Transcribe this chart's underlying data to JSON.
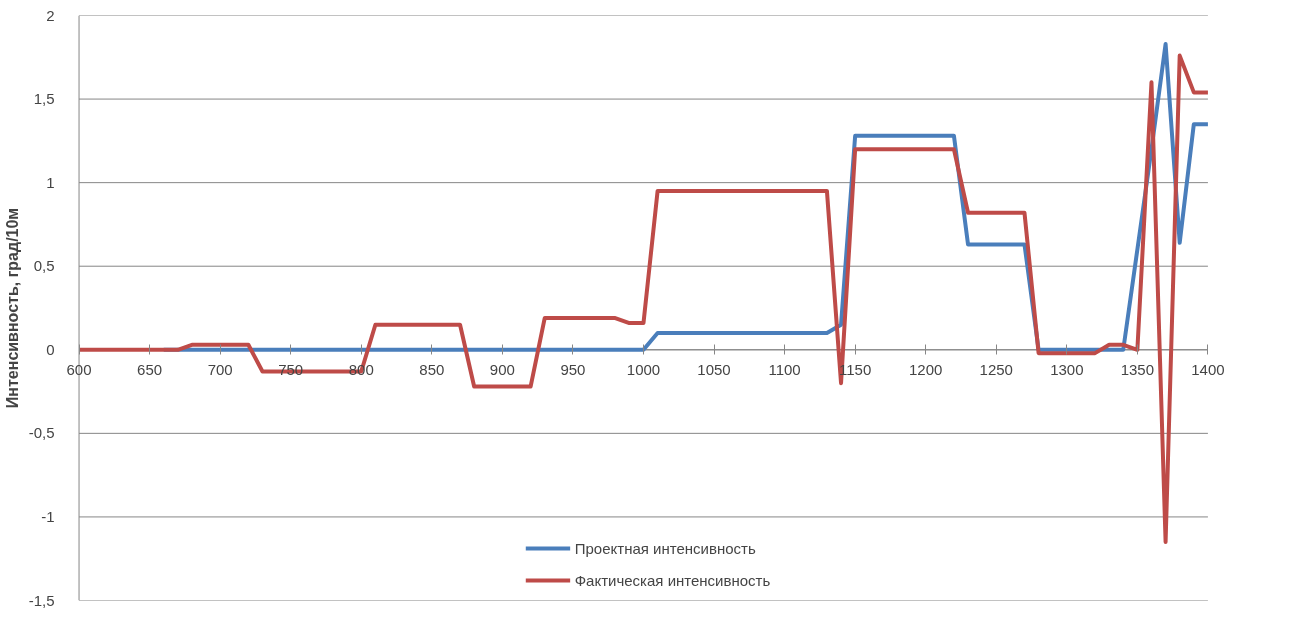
{
  "chart_data": {
    "type": "line",
    "ylabel": "Интенсивность, град/10м",
    "x": [
      600,
      610,
      620,
      630,
      640,
      650,
      660,
      670,
      680,
      690,
      700,
      710,
      720,
      730,
      740,
      750,
      760,
      770,
      780,
      790,
      800,
      810,
      820,
      830,
      840,
      850,
      860,
      870,
      880,
      890,
      900,
      910,
      920,
      930,
      940,
      950,
      960,
      970,
      980,
      990,
      1000,
      1010,
      1020,
      1030,
      1040,
      1050,
      1060,
      1070,
      1080,
      1090,
      1100,
      1110,
      1120,
      1130,
      1140,
      1150,
      1160,
      1170,
      1180,
      1190,
      1200,
      1210,
      1220,
      1230,
      1240,
      1250,
      1260,
      1270,
      1280,
      1290,
      1300,
      1310,
      1320,
      1330,
      1340,
      1350,
      1360,
      1370,
      1380,
      1390,
      1400
    ],
    "series": [
      {
        "name": "Проектная интенсивность",
        "color": "#4a7ebb",
        "values": [
          null,
          null,
          null,
          null,
          null,
          null,
          0,
          0,
          0,
          0,
          0,
          0,
          0,
          0,
          0,
          0,
          0,
          0,
          0,
          0,
          0,
          0,
          0,
          0,
          0,
          0,
          0,
          0,
          0,
          0,
          0,
          0,
          0,
          0,
          0,
          0,
          0,
          0,
          0,
          0,
          0,
          0.1,
          0.1,
          0.1,
          0.1,
          0.1,
          0.1,
          0.1,
          0.1,
          0.1,
          0.1,
          0.1,
          0.1,
          0.1,
          0.15,
          1.28,
          1.28,
          1.28,
          1.28,
          1.28,
          1.28,
          1.28,
          1.28,
          0.63,
          0.63,
          0.63,
          0.63,
          0.63,
          0,
          0,
          0,
          0,
          0,
          0,
          0,
          0.6,
          1.2,
          1.83,
          0.64,
          1.35,
          1.35
        ]
      },
      {
        "name": "Фактическая интенсивность",
        "color": "#be4b48",
        "values": [
          0,
          0,
          0,
          0,
          0,
          0,
          0,
          0,
          0.03,
          0.03,
          0.03,
          0.03,
          0.03,
          -0.13,
          -0.13,
          -0.13,
          -0.13,
          -0.13,
          -0.13,
          -0.13,
          -0.13,
          0.15,
          0.15,
          0.15,
          0.15,
          0.15,
          0.15,
          0.15,
          -0.22,
          -0.22,
          -0.22,
          -0.22,
          -0.22,
          0.19,
          0.19,
          0.19,
          0.19,
          0.19,
          0.19,
          0.16,
          0.16,
          0.95,
          0.95,
          0.95,
          0.95,
          0.95,
          0.95,
          0.95,
          0.95,
          0.95,
          0.95,
          0.95,
          0.95,
          0.95,
          -0.2,
          1.2,
          1.2,
          1.2,
          1.2,
          1.2,
          1.2,
          1.2,
          1.2,
          0.82,
          0.82,
          0.82,
          0.82,
          0.82,
          -0.02,
          -0.02,
          -0.02,
          -0.02,
          -0.02,
          0.03,
          0.03,
          0,
          1.6,
          -1.15,
          1.76,
          1.54,
          1.54
        ]
      }
    ],
    "xlim": [
      600,
      1400
    ],
    "ylim": [
      -1.5,
      2
    ],
    "xticks": [
      600,
      650,
      700,
      750,
      800,
      850,
      900,
      950,
      1000,
      1050,
      1100,
      1150,
      1200,
      1250,
      1300,
      1350,
      1400
    ],
    "yticks": [
      {
        "value": -1.5,
        "label": "-1,5"
      },
      -1,
      {
        "value": -0.5,
        "label": "-0,5"
      },
      0,
      {
        "value": 0.5,
        "label": "0,5"
      },
      1,
      {
        "value": 1.5,
        "label": "1,5"
      },
      2
    ],
    "grid": "y",
    "legend": "bottom",
    "line_style": "solid",
    "marker": "none"
  }
}
